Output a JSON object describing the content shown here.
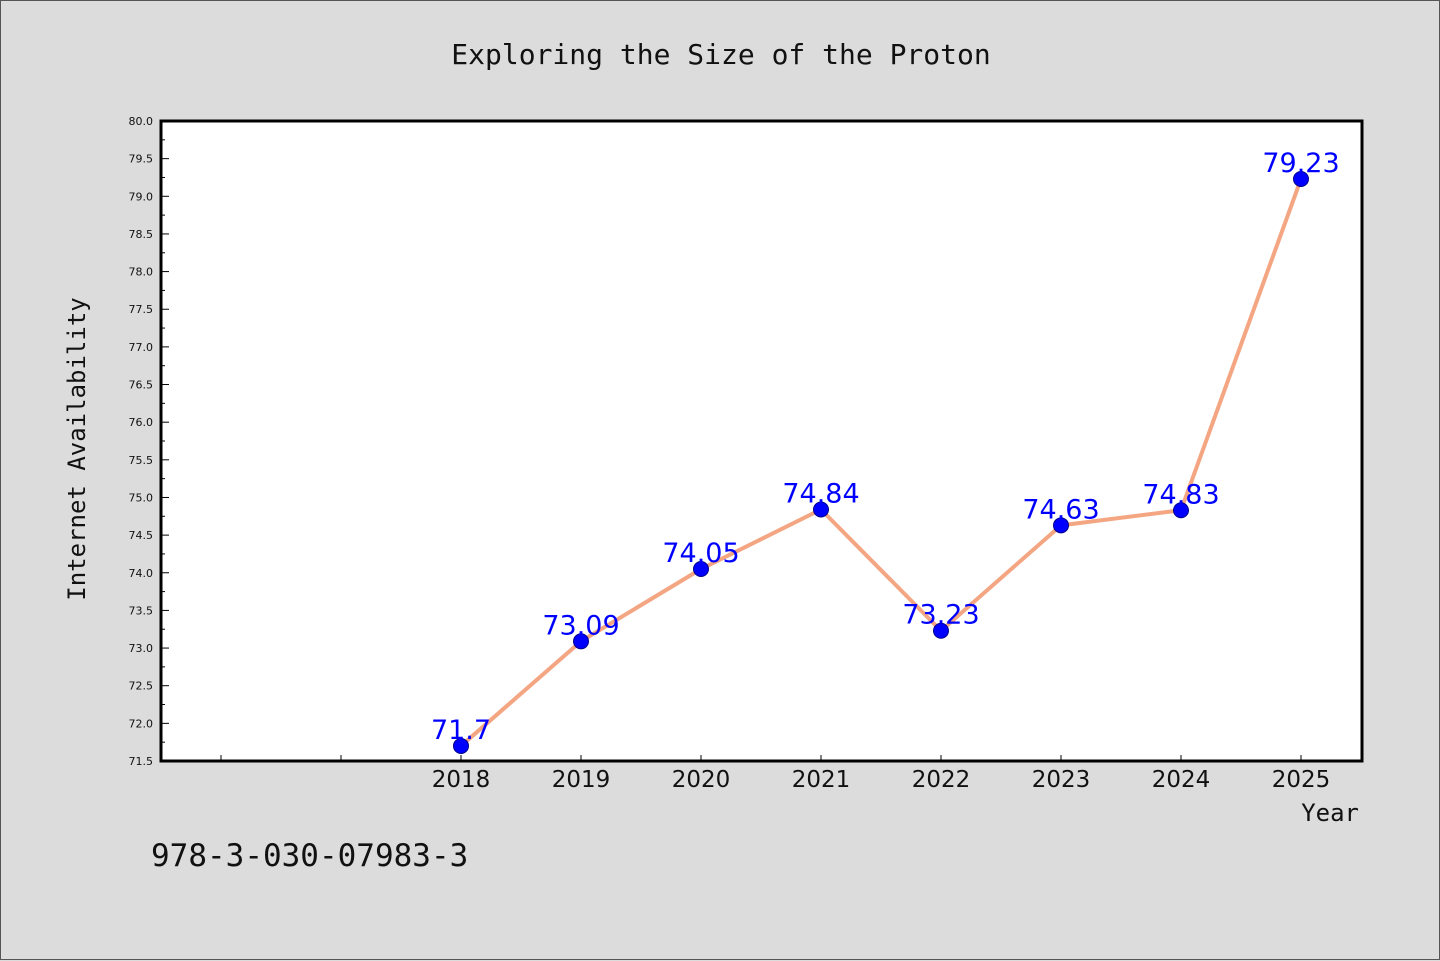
{
  "chart_data": {
    "type": "line",
    "title": "Exploring the Size of the Proton",
    "xlabel": "Year",
    "ylabel": "Internet Availability",
    "categories": [
      "2018",
      "2019",
      "2020",
      "2021",
      "2022",
      "2023",
      "2024",
      "2025"
    ],
    "values": [
      71.7,
      73.09,
      74.05,
      74.84,
      73.23,
      74.63,
      74.83,
      79.23
    ],
    "data_labels": [
      "71.7",
      "73.09",
      "74.05",
      "74.84",
      "73.23",
      "74.63",
      "74.83",
      "79.23"
    ],
    "ylim": [
      71.5,
      80.0
    ],
    "yticks": [
      "71.5",
      "72.0",
      "72.5",
      "73.0",
      "73.5",
      "74.0",
      "74.5",
      "75.0",
      "75.5",
      "76.0",
      "76.5",
      "77.0",
      "77.5",
      "78.0",
      "78.5",
      "79.0",
      "79.5",
      "80.0"
    ],
    "grid": false,
    "line_color": "#f4a582",
    "marker_color": "#0000ff",
    "label_color": "#0000ff"
  },
  "footnote": "978-3-030-07983-3"
}
